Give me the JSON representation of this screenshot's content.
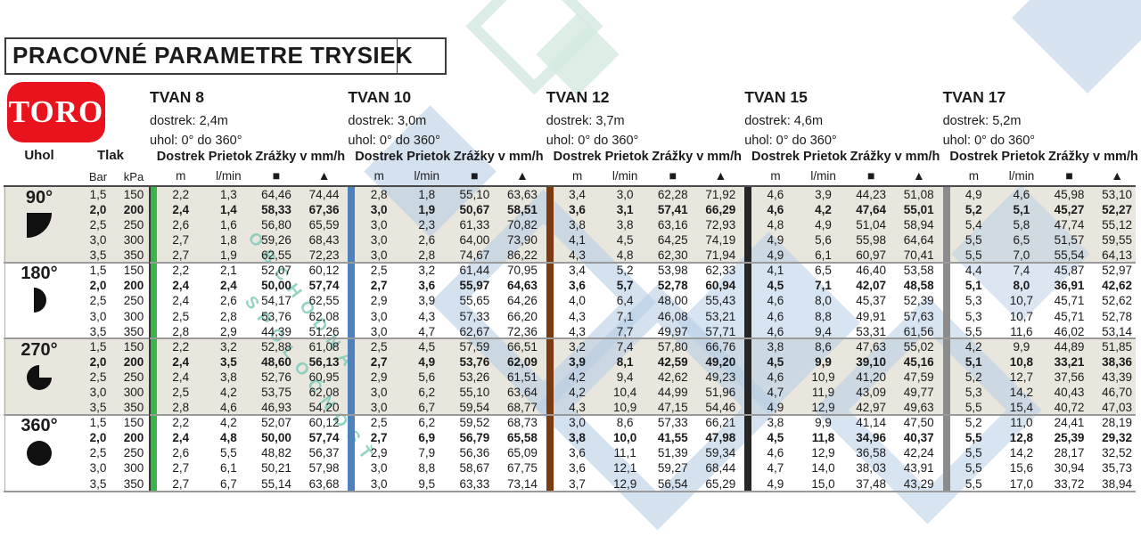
{
  "title": "PRACOVNÉ PARAMETRE TRYSIEK",
  "brand": {
    "logo_text": "TORO"
  },
  "watermark": {
    "line1": "OBCHODNÁ",
    "line2": "SPOLOČNOSŤ"
  },
  "headers": {
    "uhol": "Uhol",
    "tlak": "Tlak",
    "bar": "Bar",
    "kpa": "kPa",
    "dostrek": "Dostrek",
    "prietok": "Prietok",
    "zrazky": "Zrážky v mm/h",
    "m": "m",
    "lmin": "l/min",
    "square": "■",
    "triangle": "▲"
  },
  "nozzles": [
    {
      "name": "TVAN 8",
      "dostrek": "dostrek: 2,4m",
      "uhol": "uhol: 0° do 360°",
      "color": "#3ab54a"
    },
    {
      "name": "TVAN 10",
      "dostrek": "dostrek: 3,0m",
      "uhol": "uhol:  0° do 360°",
      "color": "#4f81bd"
    },
    {
      "name": "TVAN 12",
      "dostrek": "dostrek: 3,7m",
      "uhol": "uhol:  0° do 360°",
      "color": "#7b3a10"
    },
    {
      "name": "TVAN 15",
      "dostrek": "dostrek: 4,6m",
      "uhol": "uhol:  0° do 360°",
      "color": "#262626"
    },
    {
      "name": "TVAN 17",
      "dostrek": "dostrek: 5,2m",
      "uhol": "uhol:  0° do 360°",
      "color": "#8c8c8c"
    }
  ],
  "groups": [
    {
      "angle": "90°",
      "icon": "quarter-circle-icon",
      "rows": [
        {
          "bar": "1,5",
          "kpa": "150",
          "bold": false,
          "values": [
            [
              "2,2",
              "1,3",
              "64,46",
              "74,44"
            ],
            [
              "2,8",
              "1,8",
              "55,10",
              "63,63"
            ],
            [
              "3,4",
              "3,0",
              "62,28",
              "71,92"
            ],
            [
              "4,6",
              "3,9",
              "44,23",
              "51,08"
            ],
            [
              "4,9",
              "4,6",
              "45,98",
              "53,10"
            ]
          ]
        },
        {
          "bar": "2,0",
          "kpa": "200",
          "bold": true,
          "values": [
            [
              "2,4",
              "1,4",
              "58,33",
              "67,36"
            ],
            [
              "3,0",
              "1,9",
              "50,67",
              "58,51"
            ],
            [
              "3,6",
              "3,1",
              "57,41",
              "66,29"
            ],
            [
              "4,6",
              "4,2",
              "47,64",
              "55,01"
            ],
            [
              "5,2",
              "5,1",
              "45,27",
              "52,27"
            ]
          ]
        },
        {
          "bar": "2,5",
          "kpa": "250",
          "bold": false,
          "values": [
            [
              "2,6",
              "1,6",
              "56,80",
              "65,59"
            ],
            [
              "3,0",
              "2,3",
              "61,33",
              "70,82"
            ],
            [
              "3,8",
              "3,8",
              "63,16",
              "72,93"
            ],
            [
              "4,8",
              "4,9",
              "51,04",
              "58,94"
            ],
            [
              "5,4",
              "5,8",
              "47,74",
              "55,12"
            ]
          ]
        },
        {
          "bar": "3,0",
          "kpa": "300",
          "bold": false,
          "values": [
            [
              "2,7",
              "1,8",
              "59,26",
              "68,43"
            ],
            [
              "3,0",
              "2,6",
              "64,00",
              "73,90"
            ],
            [
              "4,1",
              "4,5",
              "64,25",
              "74,19"
            ],
            [
              "4,9",
              "5,6",
              "55,98",
              "64,64"
            ],
            [
              "5,5",
              "6,5",
              "51,57",
              "59,55"
            ]
          ]
        },
        {
          "bar": "3,5",
          "kpa": "350",
          "bold": false,
          "values": [
            [
              "2,7",
              "1,9",
              "62,55",
              "72,23"
            ],
            [
              "3,0",
              "2,8",
              "74,67",
              "86,22"
            ],
            [
              "4,3",
              "4,8",
              "62,30",
              "71,94"
            ],
            [
              "4,9",
              "6,1",
              "60,97",
              "70,41"
            ],
            [
              "5,5",
              "7,0",
              "55,54",
              "64,13"
            ]
          ]
        }
      ]
    },
    {
      "angle": "180°",
      "icon": "half-circle-icon",
      "rows": [
        {
          "bar": "1,5",
          "kpa": "150",
          "bold": false,
          "values": [
            [
              "2,2",
              "2,1",
              "52,07",
              "60,12"
            ],
            [
              "2,5",
              "3,2",
              "61,44",
              "70,95"
            ],
            [
              "3,4",
              "5,2",
              "53,98",
              "62,33"
            ],
            [
              "4,1",
              "6,5",
              "46,40",
              "53,58"
            ],
            [
              "4,4",
              "7,4",
              "45,87",
              "52,97"
            ]
          ]
        },
        {
          "bar": "2,0",
          "kpa": "200",
          "bold": true,
          "values": [
            [
              "2,4",
              "2,4",
              "50,00",
              "57,74"
            ],
            [
              "2,7",
              "3,6",
              "55,97",
              "64,63"
            ],
            [
              "3,6",
              "5,7",
              "52,78",
              "60,94"
            ],
            [
              "4,5",
              "7,1",
              "42,07",
              "48,58"
            ],
            [
              "5,1",
              "8,0",
              "36,91",
              "42,62"
            ]
          ]
        },
        {
          "bar": "2,5",
          "kpa": "250",
          "bold": false,
          "values": [
            [
              "2,4",
              "2,6",
              "54,17",
              "62,55"
            ],
            [
              "2,9",
              "3,9",
              "55,65",
              "64,26"
            ],
            [
              "4,0",
              "6,4",
              "48,00",
              "55,43"
            ],
            [
              "4,6",
              "8,0",
              "45,37",
              "52,39"
            ],
            [
              "5,3",
              "10,7",
              "45,71",
              "52,62"
            ]
          ]
        },
        {
          "bar": "3,0",
          "kpa": "300",
          "bold": false,
          "values": [
            [
              "2,5",
              "2,8",
              "53,76",
              "62,08"
            ],
            [
              "3,0",
              "4,3",
              "57,33",
              "66,20"
            ],
            [
              "4,3",
              "7,1",
              "46,08",
              "53,21"
            ],
            [
              "4,6",
              "8,8",
              "49,91",
              "57,63"
            ],
            [
              "5,3",
              "10,7",
              "45,71",
              "52,78"
            ]
          ]
        },
        {
          "bar": "3,5",
          "kpa": "350",
          "bold": false,
          "values": [
            [
              "2,8",
              "2,9",
              "44,39",
              "51,26"
            ],
            [
              "3,0",
              "4,7",
              "62,67",
              "72,36"
            ],
            [
              "4,3",
              "7,7",
              "49,97",
              "57,71"
            ],
            [
              "4,6",
              "9,4",
              "53,31",
              "61,56"
            ],
            [
              "5,5",
              "11,6",
              "46,02",
              "53,14"
            ]
          ]
        }
      ]
    },
    {
      "angle": "270°",
      "icon": "three-quarter-circle-icon",
      "rows": [
        {
          "bar": "1,5",
          "kpa": "150",
          "bold": false,
          "values": [
            [
              "2,2",
              "3,2",
              "52,88",
              "61,08"
            ],
            [
              "2,5",
              "4,5",
              "57,59",
              "66,51"
            ],
            [
              "3,2",
              "7,4",
              "57,80",
              "66,76"
            ],
            [
              "3,8",
              "8,6",
              "47,63",
              "55,02"
            ],
            [
              "4,2",
              "9,9",
              "44,89",
              "51,85"
            ]
          ]
        },
        {
          "bar": "2,0",
          "kpa": "200",
          "bold": true,
          "values": [
            [
              "2,4",
              "3,5",
              "48,60",
              "56,13"
            ],
            [
              "2,7",
              "4,9",
              "53,76",
              "62,09"
            ],
            [
              "3,9",
              "8,1",
              "42,59",
              "49,20"
            ],
            [
              "4,5",
              "9,9",
              "39,10",
              "45,16"
            ],
            [
              "5,1",
              "10,8",
              "33,21",
              "38,36"
            ]
          ]
        },
        {
          "bar": "2,5",
          "kpa": "250",
          "bold": false,
          "values": [
            [
              "2,4",
              "3,8",
              "52,76",
              "60,95"
            ],
            [
              "2,9",
              "5,6",
              "53,26",
              "61,51"
            ],
            [
              "4,2",
              "9,4",
              "42,62",
              "49,23"
            ],
            [
              "4,6",
              "10,9",
              "41,20",
              "47,59"
            ],
            [
              "5,2",
              "12,7",
              "37,56",
              "43,39"
            ]
          ]
        },
        {
          "bar": "3,0",
          "kpa": "300",
          "bold": false,
          "values": [
            [
              "2,5",
              "4,2",
              "53,75",
              "62,08"
            ],
            [
              "3,0",
              "6,2",
              "55,10",
              "63,64"
            ],
            [
              "4,2",
              "10,4",
              "44,99",
              "51,96"
            ],
            [
              "4,7",
              "11,9",
              "43,09",
              "49,77"
            ],
            [
              "5,3",
              "14,2",
              "40,43",
              "46,70"
            ]
          ]
        },
        {
          "bar": "3,5",
          "kpa": "350",
          "bold": false,
          "values": [
            [
              "2,8",
              "4,6",
              "46,93",
              "54,20"
            ],
            [
              "3,0",
              "6,7",
              "59,54",
              "68,77"
            ],
            [
              "4,3",
              "10,9",
              "47,15",
              "54,46"
            ],
            [
              "4,9",
              "12,9",
              "42,97",
              "49,63"
            ],
            [
              "5,5",
              "15,4",
              "40,72",
              "47,03"
            ]
          ]
        }
      ]
    },
    {
      "angle": "360°",
      "icon": "full-circle-icon",
      "rows": [
        {
          "bar": "1,5",
          "kpa": "150",
          "bold": false,
          "values": [
            [
              "2,2",
              "4,2",
              "52,07",
              "60,12"
            ],
            [
              "2,5",
              "6,2",
              "59,52",
              "68,73"
            ],
            [
              "3,0",
              "8,6",
              "57,33",
              "66,21"
            ],
            [
              "3,8",
              "9,9",
              "41,14",
              "47,50"
            ],
            [
              "5,2",
              "11,0",
              "24,41",
              "28,19"
            ]
          ]
        },
        {
          "bar": "2,0",
          "kpa": "200",
          "bold": true,
          "values": [
            [
              "2,4",
              "4,8",
              "50,00",
              "57,74"
            ],
            [
              "2,7",
              "6,9",
              "56,79",
              "65,58"
            ],
            [
              "3,8",
              "10,0",
              "41,55",
              "47,98"
            ],
            [
              "4,5",
              "11,8",
              "34,96",
              "40,37"
            ],
            [
              "5,5",
              "12,8",
              "25,39",
              "29,32"
            ]
          ]
        },
        {
          "bar": "2,5",
          "kpa": "250",
          "bold": false,
          "values": [
            [
              "2,6",
              "5,5",
              "48,82",
              "56,37"
            ],
            [
              "2,9",
              "7,9",
              "56,36",
              "65,09"
            ],
            [
              "3,6",
              "11,1",
              "51,39",
              "59,34"
            ],
            [
              "4,6",
              "12,9",
              "36,58",
              "42,24"
            ],
            [
              "5,5",
              "14,2",
              "28,17",
              "32,52"
            ]
          ]
        },
        {
          "bar": "3,0",
          "kpa": "300",
          "bold": false,
          "values": [
            [
              "2,7",
              "6,1",
              "50,21",
              "57,98"
            ],
            [
              "3,0",
              "8,8",
              "58,67",
              "67,75"
            ],
            [
              "3,6",
              "12,1",
              "59,27",
              "68,44"
            ],
            [
              "4,7",
              "14,0",
              "38,03",
              "43,91"
            ],
            [
              "5,5",
              "15,6",
              "30,94",
              "35,73"
            ]
          ]
        },
        {
          "bar": "3,5",
          "kpa": "350",
          "bold": false,
          "values": [
            [
              "2,7",
              "6,7",
              "55,14",
              "63,68"
            ],
            [
              "3,0",
              "9,5",
              "63,33",
              "73,14"
            ],
            [
              "3,7",
              "12,9",
              "56,54",
              "65,29"
            ],
            [
              "4,9",
              "15,0",
              "37,48",
              "43,29"
            ],
            [
              "5,5",
              "17,0",
              "33,72",
              "38,94"
            ]
          ]
        }
      ]
    }
  ]
}
